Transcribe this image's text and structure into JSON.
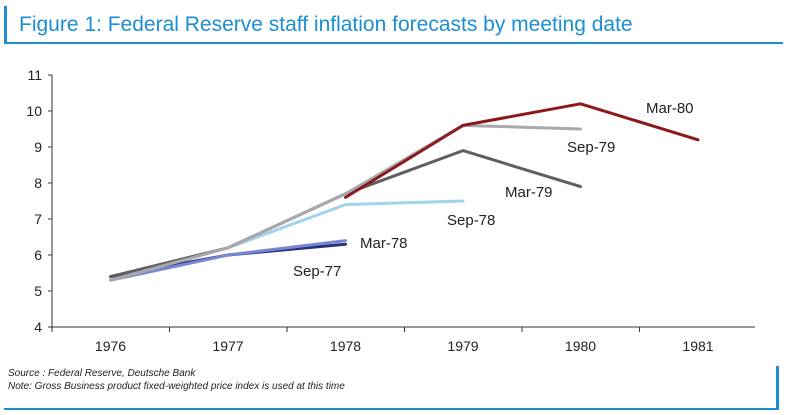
{
  "title": "Figure 1: Federal Reserve staff inflation forecasts by meeting date",
  "source": "Source : Federal Reserve, Deutsche Bank",
  "note": "Note: Gross Business product fixed-weighted price index is used at this time",
  "chart_data": {
    "type": "line",
    "xlim": [
      1976,
      1981
    ],
    "ylim": [
      4,
      11
    ],
    "x_ticks": [
      "1976",
      "1977",
      "1978",
      "1979",
      "1980",
      "1981"
    ],
    "y_ticks": [
      "4",
      "5",
      "6",
      "7",
      "8",
      "9",
      "10",
      "11"
    ],
    "grid": false,
    "legend": "none",
    "series": [
      {
        "name": "Mar-80",
        "color": "#8b1a1a",
        "points": [
          [
            1978,
            7.6
          ],
          [
            1979,
            9.6
          ],
          [
            1980,
            10.2
          ],
          [
            1981,
            9.2
          ]
        ]
      },
      {
        "name": "Sep-79",
        "color": "#a8a8ad",
        "points": [
          [
            1976,
            5.3
          ],
          [
            1977,
            6.2
          ],
          [
            1978,
            7.7
          ],
          [
            1979,
            9.6
          ],
          [
            1980,
            9.5
          ]
        ]
      },
      {
        "name": "Mar-79",
        "color": "#5e5e64",
        "points": [
          [
            1976,
            5.4
          ],
          [
            1977,
            6.2
          ],
          [
            1978,
            7.7
          ],
          [
            1979,
            8.9
          ],
          [
            1980,
            7.9
          ]
        ]
      },
      {
        "name": "Sep-78",
        "color": "#9fd3ee",
        "points": [
          [
            1976,
            5.3
          ],
          [
            1977,
            6.2
          ],
          [
            1978,
            7.4
          ],
          [
            1979,
            7.5
          ]
        ]
      },
      {
        "name": "Mar-78",
        "color": "#7a86d0",
        "points": [
          [
            1976,
            5.3
          ],
          [
            1977,
            6.0
          ],
          [
            1978,
            6.4
          ]
        ]
      },
      {
        "name": "Sep-77",
        "color": "#25327a",
        "points": [
          [
            1976,
            5.4
          ],
          [
            1977,
            6.0
          ],
          [
            1978,
            6.3
          ]
        ]
      }
    ]
  }
}
